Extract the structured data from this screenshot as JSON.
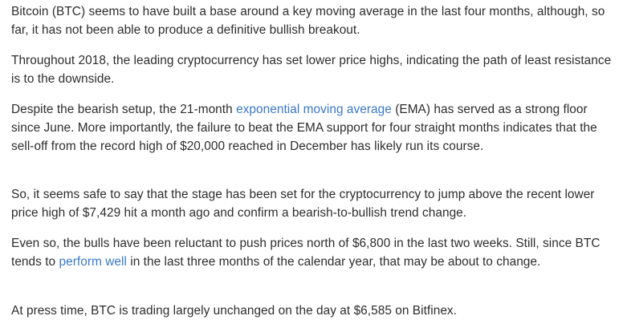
{
  "article": {
    "p1": "Bitcoin (BTC) seems to have built a base around a key moving average in the last four months, although, so far, it has not been able to produce a definitive bullish breakout.",
    "p2": "Throughout 2018, the leading cryptocurrency has set lower price highs, indicating the path of least resistance is to the downside.",
    "p3_before": "Despite the bearish setup, the 21-month ",
    "p3_link": "exponential moving average",
    "p3_after": " (EMA) has served as a strong floor since June. More importantly, the failure to beat the EMA support for four straight months indicates that the sell-off from the record high of $20,000 reached in December has likely run its course.",
    "p4": "So, it seems safe to say that the stage has been set for the cryptocurrency to jump above the recent lower price high of $7,429 hit a month ago and confirm a bearish-to-bullish trend change.",
    "p5_before": "Even so, the bulls have been reluctant to push prices north of $6,800 in the last two weeks. Still, since BTC tends to ",
    "p5_link": "perform well",
    "p5_after": " in the last three months of the calendar year, that may be about to change.",
    "p6": "At press time,  BTC is trading largely unchanged on the day at $6,585 on Bitfinex."
  },
  "colors": {
    "text": "#2d2d2d",
    "link": "#3a78c9",
    "background": "#ffffff"
  }
}
